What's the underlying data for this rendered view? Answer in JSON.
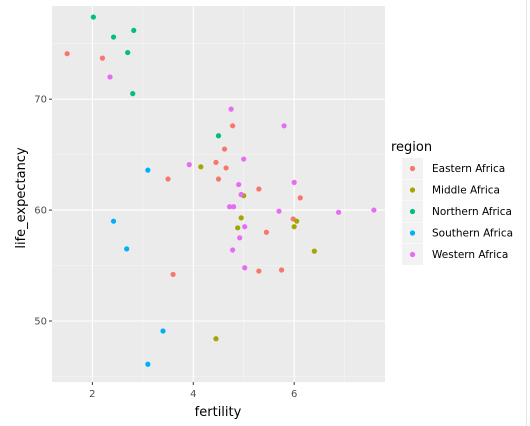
{
  "colors": {
    "panel_bg": "#ebebeb",
    "grid_major": "#ffffff",
    "grid_minor": "#f5f5f5",
    "tick_text": "#4d4d4d",
    "axis_title": "#000000",
    "legend_key_bg": "#f2f2f2"
  },
  "chart_data": {
    "type": "scatter",
    "title": "",
    "xlabel": "fertility",
    "ylabel": "life_expectancy",
    "xlim": [
      1.2,
      7.8
    ],
    "ylim": [
      44.5,
      78.4
    ],
    "xticks": [
      2,
      4,
      6
    ],
    "xtick_labels": [
      "2",
      "4",
      "6"
    ],
    "yticks": [
      50,
      60,
      70
    ],
    "ytick_labels": [
      "50",
      "60",
      "70"
    ],
    "grid": true,
    "legend": {
      "title": "region",
      "placement": "right",
      "items": [
        "Eastern Africa",
        "Middle Africa",
        "Northern Africa",
        "Southern Africa",
        "Western Africa"
      ]
    },
    "series": [
      {
        "name": "Eastern Africa",
        "color": "#F8766D",
        "points": [
          [
            1.5,
            74.1
          ],
          [
            2.2,
            73.7
          ],
          [
            3.5,
            62.8
          ],
          [
            3.6,
            54.2
          ],
          [
            4.45,
            64.3
          ],
          [
            4.5,
            62.8
          ],
          [
            4.62,
            65.5
          ],
          [
            4.65,
            63.8
          ],
          [
            4.78,
            67.6
          ],
          [
            4.95,
            61.4
          ],
          [
            5.3,
            61.9
          ],
          [
            5.45,
            58.0
          ],
          [
            5.75,
            54.6
          ],
          [
            5.3,
            54.5
          ],
          [
            5.98,
            59.2
          ],
          [
            6.12,
            61.1
          ]
        ]
      },
      {
        "name": "Middle Africa",
        "color": "#A3A500",
        "points": [
          [
            4.15,
            63.9
          ],
          [
            4.45,
            48.4
          ],
          [
            4.88,
            58.4
          ],
          [
            4.95,
            59.3
          ],
          [
            5.0,
            61.3
          ],
          [
            6.0,
            58.5
          ],
          [
            6.05,
            59.0
          ],
          [
            6.4,
            56.3
          ]
        ]
      },
      {
        "name": "Northern Africa",
        "color": "#00BF7D",
        "points": [
          [
            2.02,
            77.4
          ],
          [
            2.42,
            75.6
          ],
          [
            2.7,
            74.2
          ],
          [
            2.82,
            76.2
          ],
          [
            2.8,
            70.5
          ],
          [
            4.5,
            66.7
          ]
        ]
      },
      {
        "name": "Southern Africa",
        "color": "#00B0F6",
        "points": [
          [
            2.42,
            59.0
          ],
          [
            2.68,
            56.5
          ],
          [
            3.1,
            63.6
          ],
          [
            3.4,
            49.1
          ],
          [
            3.1,
            46.1
          ]
        ]
      },
      {
        "name": "Western Africa",
        "color": "#E76BF3",
        "points": [
          [
            2.35,
            72.0
          ],
          [
            3.92,
            64.1
          ],
          [
            4.75,
            69.1
          ],
          [
            4.72,
            60.3
          ],
          [
            4.8,
            60.3
          ],
          [
            4.78,
            56.4
          ],
          [
            4.9,
            62.3
          ],
          [
            4.95,
            61.4
          ],
          [
            4.92,
            57.5
          ],
          [
            5.0,
            64.6
          ],
          [
            5.02,
            54.8
          ],
          [
            5.7,
            59.9
          ],
          [
            5.8,
            67.6
          ],
          [
            6.0,
            62.5
          ],
          [
            6.88,
            59.8
          ],
          [
            7.58,
            60.0
          ],
          [
            5.02,
            58.5
          ]
        ]
      }
    ]
  }
}
